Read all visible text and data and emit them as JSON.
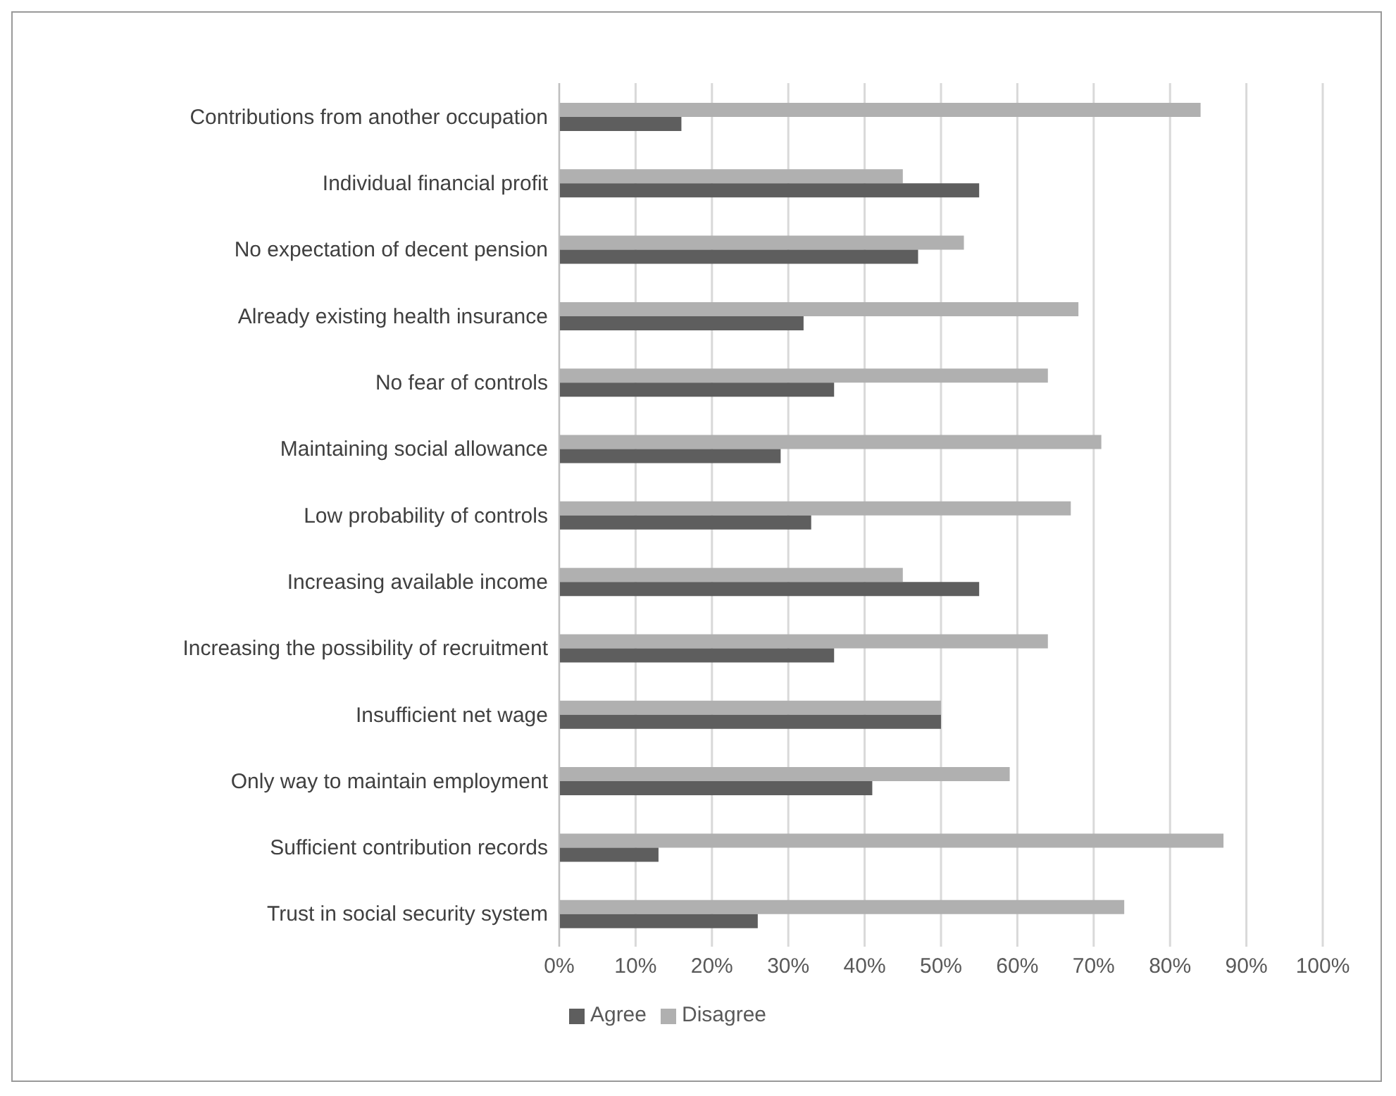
{
  "chart_data": {
    "type": "bar",
    "orientation": "horizontal",
    "categories": [
      "Contributions from another occupation",
      "Individual financial profit",
      "No expectation of decent pension",
      "Already existing health insurance",
      "No fear of controls",
      "Maintaining social allowance",
      "Low probability of controls",
      "Increasing available income",
      "Increasing the possibility of recruitment",
      "Insufficient net wage",
      "Only way to maintain employment",
      "Sufficient contribution records",
      "Trust in social security system"
    ],
    "series": [
      {
        "name": "Disagree",
        "color": "#b0b0b0",
        "values": [
          84,
          45,
          53,
          68,
          64,
          71,
          67,
          45,
          64,
          50,
          59,
          87,
          74
        ]
      },
      {
        "name": "Agree",
        "color": "#5e5e5e",
        "values": [
          16,
          55,
          47,
          32,
          36,
          29,
          33,
          55,
          36,
          50,
          41,
          13,
          26
        ]
      }
    ],
    "xlim": [
      0,
      100
    ],
    "xticks": [
      {
        "value": 0,
        "label": "0%"
      },
      {
        "value": 10,
        "label": "10%"
      },
      {
        "value": 20,
        "label": "20%"
      },
      {
        "value": 30,
        "label": "30%"
      },
      {
        "value": 40,
        "label": "40%"
      },
      {
        "value": 50,
        "label": "50%"
      },
      {
        "value": 60,
        "label": "60%"
      },
      {
        "value": 70,
        "label": "70%"
      },
      {
        "value": 80,
        "label": "80%"
      },
      {
        "value": 90,
        "label": "90%"
      },
      {
        "value": 100,
        "label": "100%"
      }
    ],
    "grid": "x",
    "legend": "bottom"
  }
}
